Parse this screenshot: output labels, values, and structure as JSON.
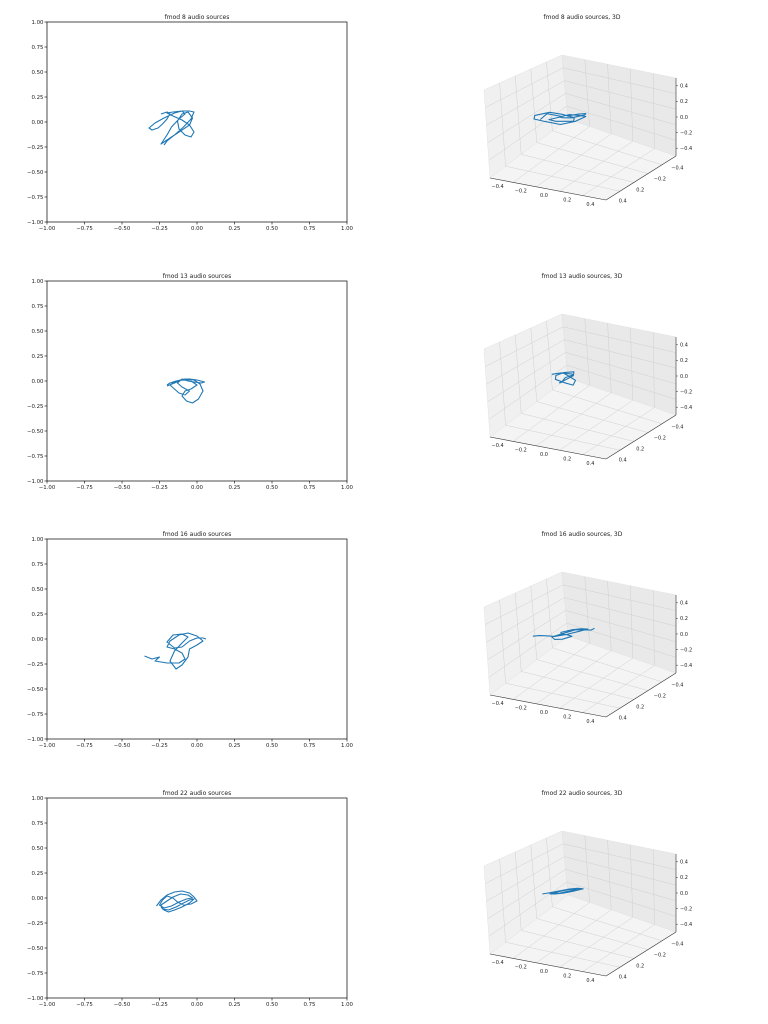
{
  "chart_data": [
    {
      "type": "line",
      "title": "fmod 8 audio sources",
      "xlim": [
        -1.0,
        1.0
      ],
      "ylim": [
        -1.0,
        1.0
      ],
      "xticks": [
        "−1.00",
        "−0.75",
        "−0.50",
        "−0.25",
        "0.00",
        "0.25",
        "0.50",
        "0.75",
        "1.00"
      ],
      "yticks": [
        "1.00",
        "0.75",
        "0.50",
        "0.25",
        "0.00",
        "−0.25",
        "−0.50",
        "−0.75",
        "−1.00"
      ],
      "series": [
        {
          "color": "#1f77b4",
          "x": [
            -0.24,
            -0.2,
            -0.18,
            -0.2,
            -0.23,
            -0.26,
            -0.3,
            -0.32,
            -0.28,
            -0.22,
            -0.15,
            -0.1,
            -0.08,
            -0.12,
            -0.17,
            -0.2,
            -0.24,
            -0.2,
            -0.12,
            -0.05,
            -0.03,
            -0.06,
            -0.1,
            -0.13,
            -0.12,
            -0.08,
            -0.04,
            -0.02,
            -0.05,
            -0.1,
            -0.16,
            -0.2,
            -0.16,
            -0.1,
            -0.05,
            -0.02,
            -0.04,
            -0.09,
            -0.15,
            -0.2,
            -0.22
          ],
          "y": [
            0.08,
            0.1,
            0.08,
            0.03,
            -0.02,
            -0.06,
            -0.08,
            -0.06,
            -0.01,
            0.04,
            0.09,
            0.11,
            0.08,
            0.03,
            -0.05,
            -0.13,
            -0.22,
            -0.18,
            -0.1,
            -0.03,
            0.04,
            0.1,
            0.08,
            0.01,
            -0.07,
            -0.13,
            -0.15,
            -0.1,
            -0.03,
            0.02,
            0.06,
            0.09,
            0.1,
            0.11,
            0.11,
            0.1,
            0.03,
            -0.05,
            -0.13,
            -0.19,
            -0.23
          ]
        }
      ]
    },
    {
      "type": "line3d",
      "title": "fmod 8 audio sources, 3D",
      "xticks": [
        "−0.4",
        "−0.2",
        "0.0",
        "0.2",
        "0.4"
      ],
      "yticks": [
        "−0.4",
        "−0.2",
        "0.2",
        "0.4"
      ],
      "zticks": [
        "0.4",
        "0.2",
        "0.0",
        "−0.2",
        "−0.4"
      ],
      "series": [
        {
          "color": "#1f77b4",
          "x": [
            -0.3,
            -0.2,
            -0.1,
            -0.15,
            -0.05,
            0.05,
            0.0,
            -0.1,
            -0.2,
            -0.3,
            -0.25,
            -0.1,
            0.0,
            0.1,
            0.15,
            0.05,
            -0.05,
            -0.1,
            0.0,
            0.12,
            0.2,
            0.15,
            0.05,
            -0.05
          ],
          "y": [
            0.05,
            0.0,
            0.1,
            -0.05,
            -0.1,
            0.05,
            0.15,
            0.1,
            0.05,
            -0.05,
            -0.15,
            -0.2,
            -0.1,
            0.0,
            0.1,
            0.2,
            0.15,
            0.05,
            -0.05,
            -0.1,
            0.0,
            0.1,
            0.15,
            0.1
          ],
          "z": [
            0.0,
            0.05,
            0.02,
            -0.05,
            -0.1,
            -0.08,
            0.0,
            0.05,
            0.08,
            0.03,
            -0.05,
            -0.12,
            -0.15,
            -0.1,
            -0.02,
            0.03,
            0.05,
            0.0,
            -0.05,
            -0.08,
            -0.03,
            0.02,
            0.04,
            0.02
          ]
        }
      ]
    },
    {
      "type": "line",
      "title": "fmod 13 audio sources",
      "xlim": [
        -1.0,
        1.0
      ],
      "ylim": [
        -1.0,
        1.0
      ],
      "xticks": [
        "−1.00",
        "−0.75",
        "−0.50",
        "−0.25",
        "0.00",
        "0.25",
        "0.50",
        "0.75",
        "1.00"
      ],
      "yticks": [
        "1.00",
        "0.75",
        "0.50",
        "0.25",
        "0.00",
        "−0.25",
        "−0.50",
        "−0.75",
        "−1.00"
      ],
      "series": [
        {
          "color": "#1f77b4",
          "x": [
            -0.2,
            -0.15,
            -0.1,
            -0.05,
            0.0,
            0.05,
            0.03,
            -0.02,
            -0.06,
            -0.1,
            -0.13,
            -0.1,
            -0.05,
            -0.08,
            -0.12,
            -0.15,
            -0.18,
            -0.14,
            -0.08,
            -0.02,
            0.02,
            0.04,
            0.01,
            -0.03,
            -0.07,
            -0.1,
            -0.08,
            -0.04,
            0.0,
            -0.04,
            -0.09,
            -0.14,
            -0.18,
            -0.2
          ],
          "y": [
            -0.05,
            -0.02,
            0.01,
            0.02,
            0.01,
            -0.01,
            -0.02,
            -0.01,
            0.0,
            0.02,
            -0.02,
            -0.06,
            -0.1,
            -0.14,
            -0.12,
            -0.08,
            -0.04,
            0.0,
            0.02,
            0.01,
            -0.03,
            -0.1,
            -0.18,
            -0.22,
            -0.2,
            -0.15,
            -0.1,
            -0.08,
            -0.04,
            0.0,
            0.01,
            0.0,
            -0.02,
            -0.04
          ]
        }
      ]
    },
    {
      "type": "line3d",
      "title": "fmod 13 audio sources, 3D",
      "xticks": [
        "−0.4",
        "−0.2",
        "0.0",
        "0.2",
        "0.4"
      ],
      "yticks": [
        "−0.4",
        "−0.2",
        "0.2",
        "0.4"
      ],
      "zticks": [
        "0.4",
        "0.2",
        "0.0",
        "−0.2",
        "−0.4"
      ],
      "series": [
        {
          "color": "#1f77b4",
          "x": [
            -0.15,
            -0.08,
            0.0,
            0.08,
            0.12,
            0.05,
            -0.02,
            -0.08,
            -0.05,
            0.02,
            0.06,
            0.0,
            -0.06,
            -0.1,
            -0.04,
            0.04,
            0.1,
            0.06,
            0.0,
            -0.05
          ],
          "y": [
            0.0,
            0.05,
            0.02,
            -0.03,
            -0.08,
            -0.1,
            -0.05,
            0.02,
            0.08,
            0.1,
            0.04,
            -0.04,
            -0.08,
            -0.02,
            0.04,
            0.06,
            0.0,
            -0.06,
            -0.04,
            0.0
          ],
          "z": [
            0.02,
            0.04,
            0.01,
            -0.02,
            -0.05,
            -0.08,
            -0.12,
            -0.1,
            -0.05,
            0.0,
            0.03,
            0.01,
            -0.03,
            -0.06,
            -0.1,
            -0.14,
            -0.1,
            -0.05,
            0.0,
            0.02
          ]
        }
      ]
    },
    {
      "type": "line",
      "title": "fmod 16 audio sources",
      "xlim": [
        -1.0,
        1.0
      ],
      "ylim": [
        -1.0,
        1.0
      ],
      "xticks": [
        "−1.00",
        "−0.75",
        "−0.50",
        "−0.25",
        "0.00",
        "0.25",
        "0.50",
        "0.75",
        "1.00"
      ],
      "yticks": [
        "1.00",
        "0.75",
        "0.50",
        "0.25",
        "0.00",
        "−0.25",
        "−0.50",
        "−0.75",
        "−1.00"
      ],
      "series": [
        {
          "color": "#1f77b4",
          "x": [
            -0.35,
            -0.3,
            -0.25,
            -0.28,
            -0.2,
            -0.12,
            -0.08,
            -0.1,
            -0.15,
            -0.2,
            -0.18,
            -0.12,
            -0.06,
            0.0,
            0.04,
            0.0,
            -0.05,
            -0.06,
            -0.1,
            -0.14,
            -0.18,
            -0.15,
            -0.1,
            -0.06,
            -0.1,
            -0.16,
            -0.2,
            -0.15,
            -0.1,
            -0.05,
            0.0,
            0.04,
            0.06
          ],
          "y": [
            -0.17,
            -0.2,
            -0.18,
            -0.22,
            -0.24,
            -0.24,
            -0.2,
            -0.14,
            -0.1,
            -0.08,
            -0.02,
            0.04,
            0.06,
            0.03,
            -0.02,
            -0.06,
            -0.1,
            -0.18,
            -0.26,
            -0.3,
            -0.22,
            -0.12,
            -0.04,
            0.02,
            0.05,
            0.04,
            -0.03,
            -0.09,
            -0.08,
            -0.02,
            0.01,
            0.01,
            0.0
          ]
        }
      ]
    },
    {
      "type": "line3d",
      "title": "fmod 16 audio sources, 3D",
      "xticks": [
        "−0.4",
        "−0.2",
        "0.0",
        "0.2",
        "0.4"
      ],
      "yticks": [
        "−0.4",
        "−0.2",
        "0.2",
        "0.4"
      ],
      "zticks": [
        "0.4",
        "0.2",
        "0.0",
        "−0.2",
        "−0.4"
      ],
      "series": [
        {
          "color": "#1f77b4",
          "x": [
            -0.35,
            -0.25,
            -0.15,
            -0.05,
            0.05,
            0.15,
            0.2,
            0.1,
            0.0,
            -0.1,
            -0.05,
            0.05,
            0.12,
            0.05,
            -0.05,
            -0.12,
            -0.05,
            0.05,
            0.15,
            0.25,
            0.3
          ],
          "y": [
            0.0,
            -0.05,
            -0.1,
            -0.12,
            -0.08,
            -0.02,
            0.05,
            0.1,
            0.12,
            0.08,
            0.0,
            -0.06,
            -0.1,
            -0.15,
            -0.12,
            -0.05,
            0.04,
            0.08,
            0.06,
            0.02,
            0.0
          ],
          "z": [
            0.0,
            -0.02,
            -0.05,
            -0.08,
            -0.06,
            -0.02,
            0.02,
            0.05,
            0.06,
            0.03,
            -0.02,
            -0.06,
            -0.1,
            -0.14,
            -0.12,
            -0.06,
            0.0,
            0.04,
            0.02,
            -0.01,
            0.0
          ]
        }
      ]
    },
    {
      "type": "line",
      "title": "fmod 22 audio sources",
      "xlim": [
        -1.0,
        1.0
      ],
      "ylim": [
        -1.0,
        1.0
      ],
      "xticks": [
        "−1.00",
        "−0.75",
        "−0.50",
        "−0.25",
        "0.00",
        "0.25",
        "0.50",
        "0.75",
        "1.00"
      ],
      "yticks": [
        "1.00",
        "0.75",
        "0.50",
        "0.25",
        "0.00",
        "−0.25",
        "−0.50",
        "−0.75",
        "−1.00"
      ],
      "series": [
        {
          "color": "#1f77b4",
          "x": [
            -0.27,
            -0.24,
            -0.2,
            -0.15,
            -0.1,
            -0.05,
            -0.02,
            0.0,
            -0.04,
            -0.09,
            -0.13,
            -0.16,
            -0.2,
            -0.23,
            -0.25,
            -0.22,
            -0.17,
            -0.12,
            -0.07,
            -0.03,
            -0.06,
            -0.11,
            -0.16,
            -0.2,
            -0.24,
            -0.23,
            -0.19,
            -0.14,
            -0.09,
            -0.05,
            -0.02,
            -0.05,
            -0.1,
            -0.15,
            -0.19,
            -0.22,
            -0.24
          ],
          "y": [
            -0.08,
            -0.02,
            0.03,
            0.06,
            0.07,
            0.05,
            0.01,
            -0.03,
            -0.06,
            -0.07,
            -0.04,
            0.0,
            0.02,
            -0.02,
            -0.07,
            -0.1,
            -0.08,
            -0.04,
            -0.01,
            0.0,
            0.03,
            0.04,
            0.01,
            -0.03,
            -0.07,
            -0.11,
            -0.12,
            -0.09,
            -0.05,
            -0.02,
            -0.01,
            -0.05,
            -0.09,
            -0.12,
            -0.14,
            -0.12,
            -0.09
          ]
        }
      ]
    },
    {
      "type": "line3d",
      "title": "fmod 22 audio sources, 3D",
      "xticks": [
        "−0.4",
        "−0.2",
        "0.0",
        "0.2",
        "0.4"
      ],
      "yticks": [
        "−0.4",
        "−0.2",
        "0.2",
        "0.4"
      ],
      "zticks": [
        "0.4",
        "0.2",
        "0.0",
        "−0.2",
        "−0.4"
      ],
      "series": [
        {
          "color": "#1f77b4",
          "x": [
            -0.25,
            -0.15,
            -0.05,
            0.05,
            0.1,
            0.05,
            -0.05,
            -0.15,
            -0.1,
            0.0,
            0.08,
            0.15,
            0.1,
            0.0,
            -0.1,
            -0.18,
            -0.1,
            0.0,
            0.1,
            0.18,
            0.12,
            0.02,
            -0.08,
            -0.15
          ],
          "y": [
            0.0,
            0.04,
            0.07,
            0.05,
            0.0,
            -0.04,
            -0.06,
            -0.03,
            0.02,
            0.05,
            0.03,
            -0.02,
            -0.07,
            -0.09,
            -0.06,
            -0.01,
            0.03,
            0.06,
            0.04,
            0.0,
            -0.05,
            -0.08,
            -0.06,
            -0.02
          ],
          "z": [
            0.0,
            0.02,
            0.04,
            0.03,
            0.0,
            -0.02,
            -0.04,
            -0.02,
            0.01,
            0.03,
            0.02,
            -0.01,
            -0.04,
            -0.05,
            -0.03,
            0.0,
            0.02,
            0.04,
            0.03,
            0.0,
            -0.03,
            -0.05,
            -0.04,
            -0.02
          ]
        }
      ]
    }
  ]
}
